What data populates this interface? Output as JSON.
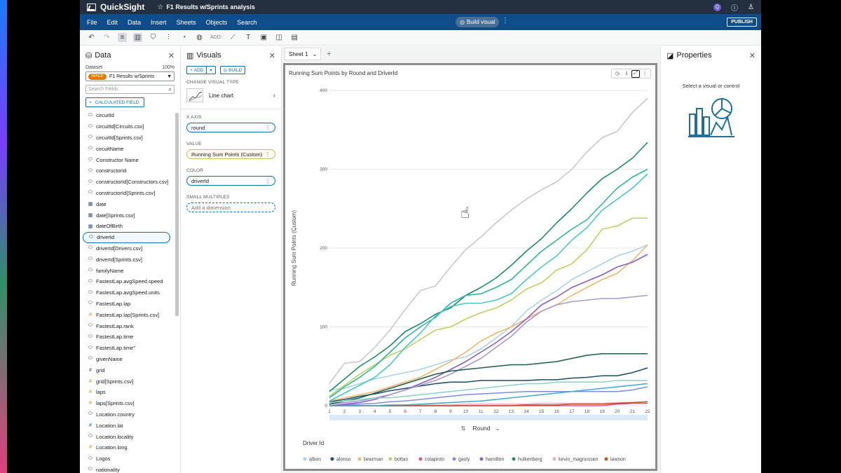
{
  "app": {
    "brand": "QuickSight",
    "analysis_title": "F1 Results w/Sprints analysis"
  },
  "menu": {
    "items": [
      "File",
      "Edit",
      "Data",
      "Insert",
      "Sheets",
      "Objects",
      "Search"
    ],
    "build_visual": "Build visual",
    "publish": "PUBLISH"
  },
  "toolbar": {
    "add_label": "ADD:"
  },
  "data_panel": {
    "title": "Data",
    "dataset_label": "Dataset",
    "dataset_pct": "100%",
    "spice": "SPICE",
    "dataset_name": "F1 Results w/Sprints",
    "search_placeholder": "Search Fields",
    "calc_field": "CALCULATED FIELD",
    "fields": [
      {
        "name": "circuitId",
        "type": "dim"
      },
      {
        "name": "circuitId[Circuits.csv]",
        "type": "dim"
      },
      {
        "name": "circuitId[Sprints.csv]",
        "type": "dim"
      },
      {
        "name": "circuitName",
        "type": "dim"
      },
      {
        "name": "Constructor Name",
        "type": "dim"
      },
      {
        "name": "constructorId",
        "type": "dim"
      },
      {
        "name": "constructorId[Constructors.csv]",
        "type": "dim"
      },
      {
        "name": "constructorId[Sprints.csv]",
        "type": "dim"
      },
      {
        "name": "date",
        "type": "date"
      },
      {
        "name": "date[Sprints.csv]",
        "type": "date"
      },
      {
        "name": "dateOfBirth",
        "type": "date"
      },
      {
        "name": "driverId",
        "type": "dim",
        "selected": true
      },
      {
        "name": "driverId[Drivers.csv]",
        "type": "dim"
      },
      {
        "name": "driverId[Sprints.csv]",
        "type": "dim"
      },
      {
        "name": "familyName",
        "type": "dim"
      },
      {
        "name": "FastestLap.avgSpeed.speed",
        "type": "dim"
      },
      {
        "name": "FastestLap.avgSpeed.units",
        "type": "dim"
      },
      {
        "name": "FastestLap.lap",
        "type": "dim"
      },
      {
        "name": "FastestLap.lap[Sprints.csv]",
        "type": "num"
      },
      {
        "name": "FastestLap.rank",
        "type": "dim"
      },
      {
        "name": "FastestLap.time",
        "type": "dim"
      },
      {
        "name": "FastestLap.time\"",
        "type": "dim"
      },
      {
        "name": "givenName",
        "type": "dim"
      },
      {
        "name": "grid",
        "type": "num2"
      },
      {
        "name": "grid[Sprints.csv]",
        "type": "num"
      },
      {
        "name": "laps",
        "type": "num"
      },
      {
        "name": "laps[Sprints.csv]",
        "type": "num"
      },
      {
        "name": "Location.country",
        "type": "dim"
      },
      {
        "name": "Location.lat",
        "type": "num2"
      },
      {
        "name": "Location.locality",
        "type": "dim"
      },
      {
        "name": "Location.long",
        "type": "num"
      },
      {
        "name": "Logos",
        "type": "dim"
      },
      {
        "name": "nationality",
        "type": "dim"
      }
    ]
  },
  "visuals_panel": {
    "title": "Visuals",
    "add": "ADD",
    "build": "BUILD",
    "change_type_label": "CHANGE VISUAL TYPE",
    "chart_type": "Line chart",
    "x_axis_label": "X AXIS",
    "x_axis_field": "round",
    "value_label": "VALUE",
    "value_field": "Running Sum Points (Custom)",
    "color_label": "COLOR",
    "color_field": "driverId",
    "small_multiples_label": "SMALL MULTIPLES",
    "small_multiples_placeholder": "Add a dimension"
  },
  "sheet": {
    "tab": "Sheet 1"
  },
  "properties_panel": {
    "title": "Properties",
    "message": "Select a visual or control"
  },
  "colors": {
    "accent": "#0073bb",
    "topbar": "#232f3e",
    "menubar": "#0f4d8a",
    "spice": "#e07b00"
  },
  "chart_data": {
    "type": "line",
    "title": "Running Sum Points by Round and DriverId",
    "xlabel": "Round",
    "ylabel": "Running Sum Points (Custom)",
    "legend_title": "Driver Id",
    "legend_position": "bottom",
    "x": [
      1,
      2,
      3,
      4,
      5,
      6,
      7,
      8,
      9,
      10,
      11,
      12,
      13,
      14,
      15,
      16,
      17,
      18,
      19,
      20,
      21,
      22
    ],
    "xlim": [
      1,
      22
    ],
    "ylim": [
      0,
      400
    ],
    "yticks": [
      0,
      100,
      200,
      300,
      400
    ],
    "grid": true,
    "series": [
      {
        "name": "albon",
        "color": "#a6d3e8",
        "values": [
          20,
          22,
          28,
          34,
          38,
          42,
          46,
          52,
          58,
          62,
          72,
          86,
          100,
          120,
          134,
          146,
          160,
          170,
          180,
          190,
          196,
          204
        ]
      },
      {
        "name": "alonso",
        "color": "#1e4d6b",
        "values": [
          5,
          8,
          12,
          15,
          19,
          22,
          25,
          28,
          30,
          30,
          32,
          32,
          32,
          32,
          33,
          33,
          35,
          36,
          38,
          38,
          42,
          48
        ]
      },
      {
        "name": "bearman",
        "color": "#f0b66a",
        "values": [
          6,
          10,
          14,
          18,
          24,
          30,
          36,
          46,
          56,
          68,
          82,
          92,
          100,
          110,
          120,
          128,
          140,
          150,
          160,
          168,
          184,
          204
        ]
      },
      {
        "name": "bottas",
        "color": "#b9d45c",
        "values": [
          12,
          26,
          40,
          52,
          64,
          72,
          84,
          96,
          100,
          110,
          118,
          124,
          134,
          148,
          156,
          172,
          180,
          198,
          224,
          228,
          238,
          238
        ]
      },
      {
        "name": "colapinto",
        "color": "#e0539a",
        "values": [
          0,
          0,
          0,
          0,
          0,
          0,
          0,
          0,
          0,
          0,
          0,
          0,
          0,
          0,
          0,
          0,
          0,
          0,
          0,
          2,
          3,
          3
        ]
      },
      {
        "name": "gasly",
        "color": "#7b8ee0",
        "values": [
          0,
          1,
          2,
          3,
          5,
          6,
          8,
          10,
          12,
          14,
          15,
          16,
          17,
          18,
          18,
          18,
          18,
          18,
          18,
          18,
          20,
          24
        ]
      },
      {
        "name": "hamilton",
        "color": "#8a5cc7",
        "values": [
          0,
          2,
          4,
          8,
          14,
          20,
          28,
          36,
          46,
          56,
          68,
          80,
          94,
          110,
          128,
          138,
          150,
          158,
          166,
          176,
          182,
          192
        ]
      },
      {
        "name": "hulkenberg",
        "color": "#1d8a6a",
        "values": [
          18,
          34,
          50,
          62,
          76,
          94,
          104,
          116,
          124,
          140,
          150,
          162,
          178,
          196,
          212,
          232,
          250,
          270,
          288,
          300,
          314,
          334
        ]
      },
      {
        "name": "kevin_magnussen",
        "color": "#f2a7c7",
        "values": [
          0,
          0,
          0,
          0,
          0,
          0,
          1,
          1,
          1,
          2,
          2,
          2,
          2,
          2,
          3,
          3,
          3,
          3,
          3,
          4,
          4,
          5
        ]
      },
      {
        "name": "lawson",
        "color": "#c44e1c",
        "values": [
          0,
          0,
          0,
          0,
          0,
          0,
          0,
          0,
          0,
          0,
          0,
          0,
          0,
          1,
          1,
          1,
          2,
          2,
          2,
          3,
          4,
          5
        ]
      },
      {
        "name": "",
        "color": "#c8c8c8",
        "values": [
          28,
          54,
          56,
          74,
          96,
          122,
          146,
          152,
          176,
          198,
          214,
          232,
          248,
          262,
          274,
          284,
          300,
          322,
          340,
          348,
          372,
          390
        ]
      },
      {
        "name": "",
        "color": "#2fb3a1",
        "values": [
          10,
          24,
          36,
          50,
          68,
          86,
          100,
          112,
          130,
          140,
          142,
          150,
          160,
          178,
          196,
          210,
          224,
          236,
          256,
          276,
          290,
          300
        ]
      },
      {
        "name": "",
        "color": "#49c7c5",
        "values": [
          6,
          16,
          26,
          36,
          52,
          74,
          92,
          114,
          126,
          130,
          130,
          134,
          142,
          160,
          176,
          190,
          210,
          226,
          248,
          262,
          276,
          294
        ]
      },
      {
        "name": "",
        "color": "#a59acb",
        "values": [
          2,
          4,
          6,
          10,
          14,
          20,
          26,
          32,
          40,
          50,
          60,
          74,
          88,
          106,
          120,
          128,
          132,
          134,
          136,
          136,
          138,
          140
        ]
      },
      {
        "name": "",
        "color": "#1a5e4a",
        "values": [
          2,
          6,
          10,
          16,
          22,
          28,
          34,
          40,
          44,
          46,
          48,
          50,
          52,
          52,
          54,
          56,
          60,
          64,
          66,
          66,
          66,
          66
        ]
      },
      {
        "name": "",
        "color": "#86d4c4",
        "values": [
          4,
          6,
          8,
          10,
          10,
          12,
          14,
          16,
          18,
          20,
          22,
          24,
          26,
          28,
          28,
          30,
          30,
          30,
          30,
          32,
          32,
          32
        ]
      },
      {
        "name": "",
        "color": "#3fa8d0",
        "values": [
          0,
          0,
          0,
          0,
          1,
          1,
          2,
          3,
          4,
          5,
          6,
          8,
          10,
          12,
          14,
          16,
          18,
          20,
          22,
          24,
          26,
          28
        ]
      }
    ]
  }
}
